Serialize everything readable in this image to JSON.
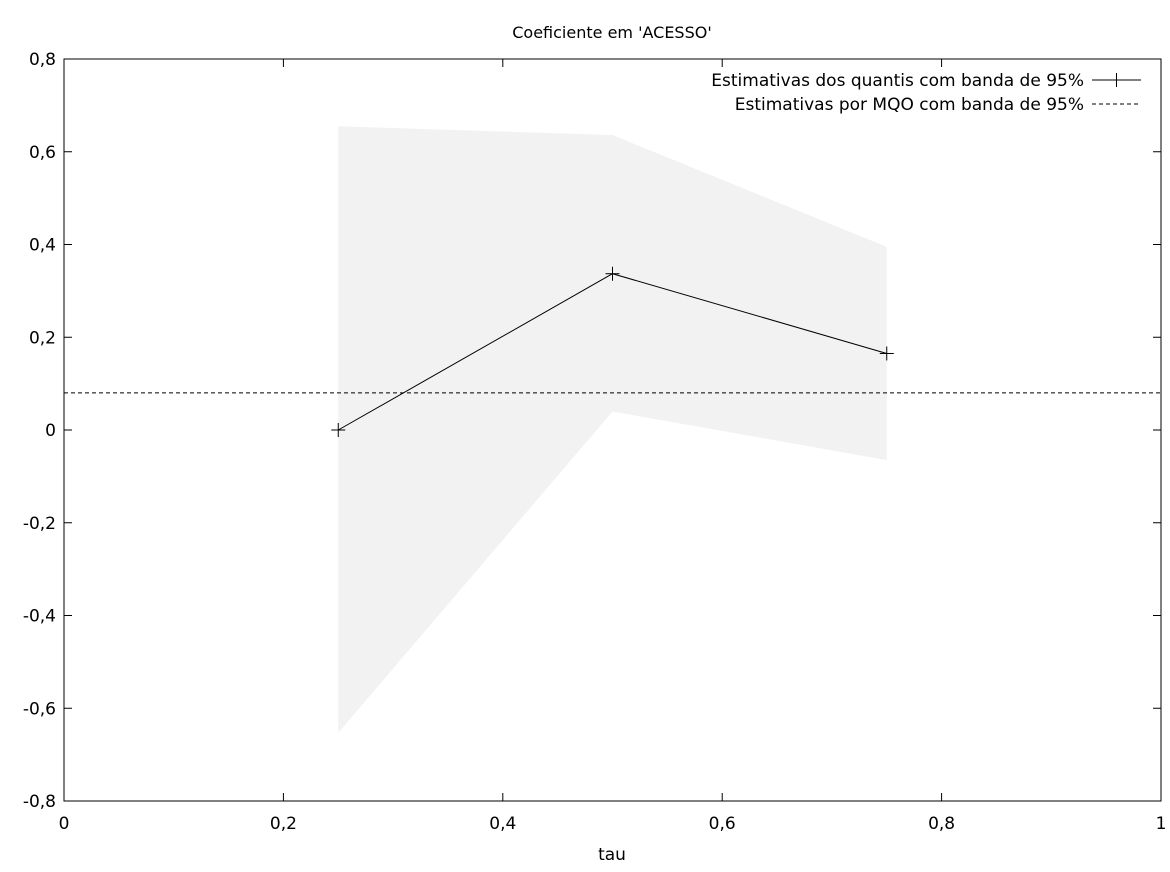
{
  "chart_data": {
    "type": "line",
    "title": "Coeficiente em 'ACESSO'",
    "xlabel": "tau",
    "ylabel": "",
    "xlim": [
      0,
      1
    ],
    "ylim": [
      -0.8,
      0.8
    ],
    "x_ticks": [
      0,
      0.2,
      0.4,
      0.6,
      0.8,
      1
    ],
    "x_tick_labels": [
      "0",
      "0,2",
      "0,4",
      "0,6",
      "0,8",
      "1"
    ],
    "y_ticks": [
      -0.8,
      -0.6,
      -0.4,
      -0.2,
      0,
      0.2,
      0.4,
      0.6,
      0.8
    ],
    "y_tick_labels": [
      "-0,8",
      "-0,6",
      "-0,4",
      "-0,2",
      "0",
      "0,2",
      "0,4",
      "0,6",
      "0,8"
    ],
    "grid": false,
    "legend_position": "top-right",
    "series": [
      {
        "name": "Estimativas dos quantis com banda de 95%",
        "style": "solid-with-markers",
        "color": "#000000",
        "x": [
          0.25,
          0.5,
          0.75
        ],
        "y": [
          0.0,
          0.337,
          0.165
        ],
        "band_lower": [
          -0.653,
          0.04,
          -0.065
        ],
        "band_upper": [
          0.655,
          0.636,
          0.395
        ],
        "band_color": "#f2f2f2"
      },
      {
        "name": "Estimativas por MQO com banda de 95%",
        "style": "dashed",
        "color": "#000000",
        "y_constant": 0.08
      }
    ]
  }
}
